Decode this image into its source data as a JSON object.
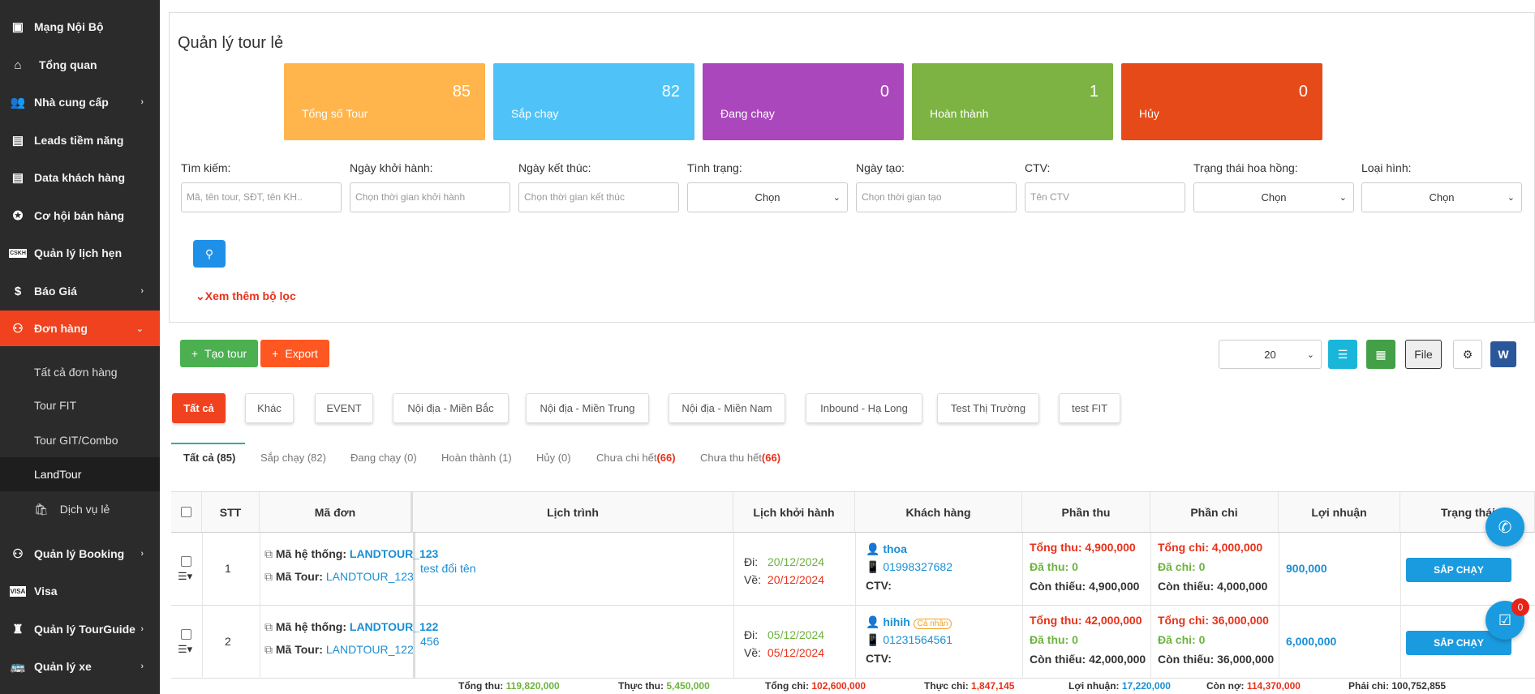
{
  "sidebar": {
    "items": [
      "Mạng Nội Bộ",
      "Tổng quan",
      "Nhà cung cấp",
      "Leads tiềm năng",
      "Data khách hàng",
      "Cơ hội bán hàng",
      "Quản lý lịch hẹn",
      "Báo Giá",
      "Đơn hàng"
    ],
    "sub": [
      "Tất cả đơn hàng",
      "Tour FIT",
      "Tour GIT/Combo",
      "LandTour",
      "Dịch vụ lẻ"
    ],
    "items2": [
      "Quản lý Booking",
      "Visa",
      "Quản lý TourGuide",
      "Quản lý xe"
    ],
    "cskh_badge": "CSKH",
    "visa_badge": "VISA"
  },
  "page_title": "Quản lý tour lẻ",
  "stats": [
    {
      "num": "85",
      "label": "Tổng số Tour",
      "color": "#ffb44c"
    },
    {
      "num": "82",
      "label": "Sắp chạy",
      "color": "#4fc3f7"
    },
    {
      "num": "0",
      "label": "Đang chạy",
      "color": "#ab47bc"
    },
    {
      "num": "1",
      "label": "Hoàn thành",
      "color": "#7cb342"
    },
    {
      "num": "0",
      "label": "Hủy",
      "color": "#e64a19"
    }
  ],
  "filters": {
    "search_label": "Tìm kiếm:",
    "search_ph": "Mã, tên tour, SĐT, tên KH..",
    "start_label": "Ngày khởi hành:",
    "start_ph": "Chọn thời gian khởi hành",
    "end_label": "Ngày kết thúc:",
    "end_ph": "Chọn thời gian kết thúc",
    "status_label": "Tình trạng:",
    "status_val": "Chọn",
    "created_label": "Ngày tạo:",
    "created_ph": "Chọn thời gian tạo",
    "ctv_label": "CTV:",
    "ctv_ph": "Tên CTV",
    "comm_label": "Trạng thái hoa hồng:",
    "comm_val": "Chọn",
    "type_label": "Loại hình:",
    "type_val": "Chọn",
    "more": "Xem thêm bộ lọc"
  },
  "toolbar": {
    "create": "Tạo tour",
    "export": "Export",
    "page_size": "20",
    "file": "File"
  },
  "tags": [
    "Tất cả",
    "Khác",
    "EVENT",
    "Nội địa - Miền Bắc",
    "Nội địa - Miền Trung",
    "Nội địa - Miền Nam",
    "Inbound - Hạ Long",
    "Test Thị Trường",
    "test FIT"
  ],
  "status_tabs": [
    {
      "label": "Tất cả (85)"
    },
    {
      "label": "Sắp chạy (82)"
    },
    {
      "label": "Đang chạy (0)"
    },
    {
      "label": "Hoàn thành (1)"
    },
    {
      "label": "Hủy (0)"
    },
    {
      "label": "Chưa chi hết",
      "count": "(66)"
    },
    {
      "label": "Chưa thu hết",
      "count": "(66)"
    }
  ],
  "table": {
    "headers": [
      "STT",
      "Mã đơn",
      "Lịch trình",
      "Lịch khởi hành",
      "Khách hàng",
      "Phần thu",
      "Phần chi",
      "Lợi nhuận",
      "Trạng thái"
    ],
    "labels": {
      "sys": "Mã hệ thống:",
      "tour": "Mã Tour:",
      "go": "Đi:",
      "back": "Về:",
      "ctv": "CTV:",
      "total_in": "Tổng thu:",
      "paid_in": "Đã thu:",
      "remain": "Còn thiếu:",
      "total_out": "Tổng chi:",
      "paid_out": "Đã chi:"
    },
    "rows": [
      {
        "stt": "1",
        "sys": "LANDTOUR_123",
        "tour": "LANDTOUR_123",
        "route": "test đổi tên",
        "go": "20/12/2024",
        "back": "20/12/2024",
        "customer": "thoa",
        "badge": "",
        "phone": "01998327682",
        "total_in": "4,900,000",
        "paid_in": "0",
        "remain_in": "4,900,000",
        "total_out": "4,000,000",
        "paid_out": "0",
        "remain_out": "4,000,000",
        "profit": "900,000",
        "status": "SẮP CHẠY"
      },
      {
        "stt": "2",
        "sys": "LANDTOUR_122",
        "tour": "LANDTOUR_122",
        "route": "456",
        "go": "05/12/2024",
        "back": "05/12/2024",
        "customer": "hihih",
        "badge": "Cá nhân",
        "phone": "01231564561",
        "total_in": "42,000,000",
        "paid_in": "0",
        "remain_in": "42,000,000",
        "total_out": "36,000,000",
        "paid_out": "0",
        "remain_out": "36,000,000",
        "profit": "6,000,000",
        "status": "SẮP CHẠY"
      }
    ]
  },
  "footer": [
    {
      "label": "Tổng thu:",
      "value": "119,820,000",
      "color": "#6db33f"
    },
    {
      "label": "Thực thu:",
      "value": "5,450,000",
      "color": "#6db33f"
    },
    {
      "label": "Tổng chi:",
      "value": "102,600,000",
      "color": "#e8311a"
    },
    {
      "label": "Thực chi:",
      "value": "1,847,145",
      "color": "#e8311a"
    },
    {
      "label": "Lợi nhuận:",
      "value": "17,220,000",
      "color": "#1a8fd4"
    },
    {
      "label": "Còn nợ:",
      "value": "114,370,000",
      "color": "#e8311a"
    },
    {
      "label": "Phải chi:",
      "value": "100,752,855",
      "color": "#333333"
    }
  ],
  "notif_count": "0"
}
